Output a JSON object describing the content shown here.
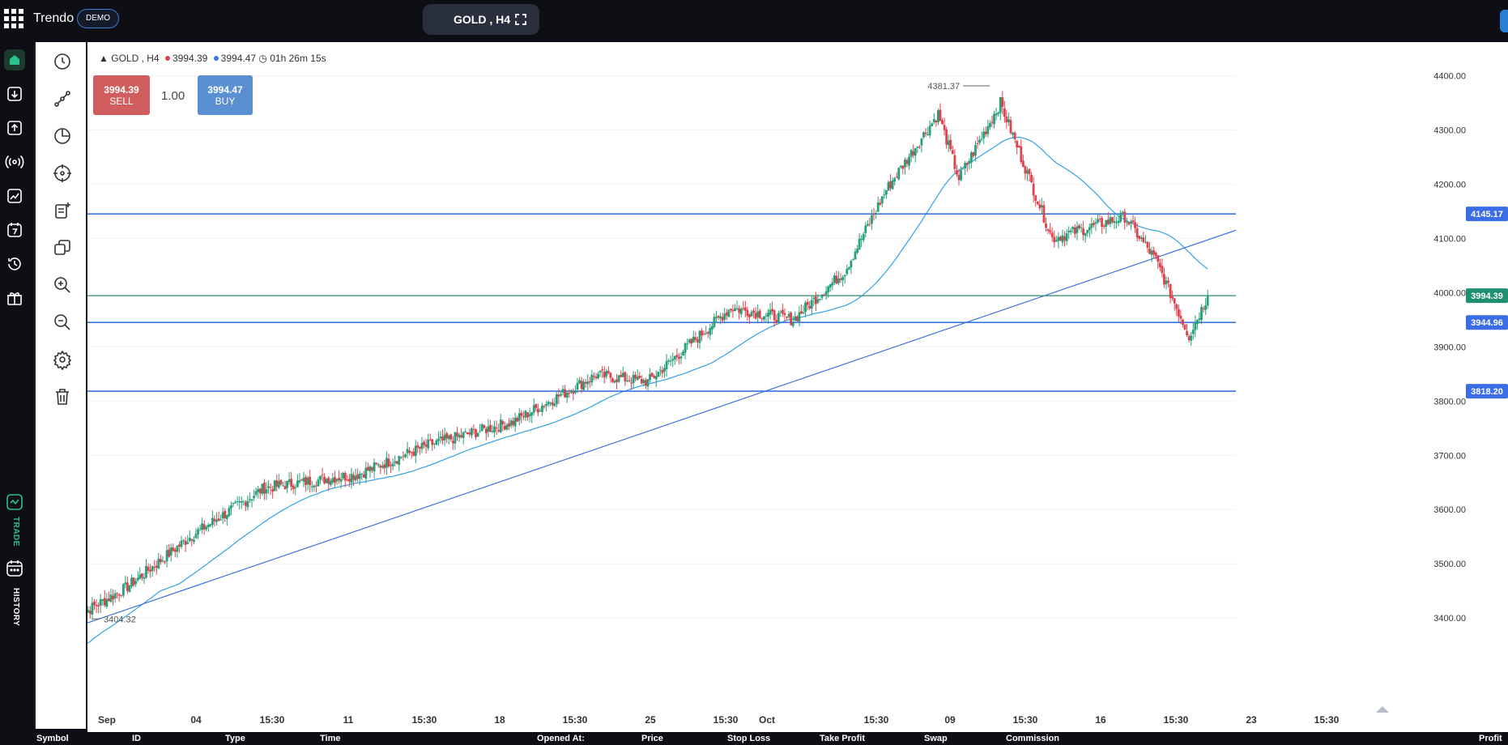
{
  "topbar": {
    "brand": "Trendo",
    "account_badge": "DEMO",
    "symbol_timeframe": "GOLD , H4",
    "icons": [
      "apps-grid-icon",
      "fullscreen-icon"
    ]
  },
  "leftnav": {
    "items": [
      "home-icon",
      "deposit-icon",
      "withdraw-icon",
      "signals-icon",
      "chart-icon",
      "calendar-icon",
      "history-icon",
      "gift-icon"
    ],
    "trade_label": "TRADE",
    "history_label": "HISTORY"
  },
  "toolbar": {
    "tools": [
      "clock-icon",
      "trendline-icon",
      "pie-icon",
      "crosshair-icon",
      "add-note-icon",
      "copy-icon",
      "zoom-in-icon",
      "zoom-out-icon",
      "settings-icon",
      "trash-icon"
    ]
  },
  "chart_header": {
    "symbol": "GOLD , H4",
    "bid": "3994.39",
    "ask": "3994.47",
    "countdown": "01h 26m 15s"
  },
  "trade_panel": {
    "sell_price": "3994.39",
    "sell_label": "SELL",
    "lot": "1.00",
    "buy_price": "3994.47",
    "buy_label": "BUY"
  },
  "colors": {
    "bull": "#26a07a",
    "bear": "#e0424d",
    "line": "#3b73e0",
    "ma": "#33a0e8",
    "price_line": "#2e8b6a"
  },
  "chart_data": {
    "type": "candlestick",
    "symbol": "GOLD",
    "timeframe": "H4",
    "ylim": [
      3345,
      4450
    ],
    "yticks": [
      "4400.00",
      "4300.00",
      "4200.00",
      "4100.00",
      "4000.00",
      "3900.00",
      "3800.00",
      "3700.00",
      "3600.00",
      "3500.00",
      "3400.00"
    ],
    "xticks": [
      "Sep",
      "04",
      "15:30",
      "11",
      "15:30",
      "18",
      "15:30",
      "25",
      "15:30",
      "Oct",
      "15:30",
      "09",
      "15:30",
      "16",
      "15:30",
      "23",
      "15:30"
    ],
    "anchors": [
      [
        0,
        3404
      ],
      [
        23,
        3455
      ],
      [
        55,
        3552
      ],
      [
        90,
        3640
      ],
      [
        135,
        3665
      ],
      [
        170,
        3720
      ],
      [
        210,
        3762
      ],
      [
        250,
        3848
      ],
      [
        275,
        3836
      ],
      [
        315,
        3972
      ],
      [
        345,
        3950
      ],
      [
        370,
        4040
      ],
      [
        390,
        4190
      ],
      [
        415,
        4330
      ],
      [
        425,
        4210
      ],
      [
        445,
        4350
      ],
      [
        470,
        4100
      ],
      [
        505,
        4140
      ],
      [
        520,
        4060
      ],
      [
        536,
        3920
      ],
      [
        545,
        3994
      ]
    ],
    "horizontal_lines": [
      {
        "value": 4145.17,
        "label": "4145.17",
        "color": "#3b73e0"
      },
      {
        "value": 3994.39,
        "label": "3994.39",
        "color": "#2e8b6a"
      },
      {
        "value": 3944.96,
        "label": "3944.96",
        "color": "#3b73e0"
      },
      {
        "value": 3818.2,
        "label": "3818.20",
        "color": "#3b73e0"
      }
    ],
    "trendline": [
      [
        3391,
        3404
      ],
      [
        4115,
        4115
      ]
    ],
    "annotations": [
      {
        "text": "4381.37",
        "value": 4381.37
      },
      {
        "text": "3404.32",
        "value": 3404.32
      }
    ]
  },
  "positions_table": {
    "columns": [
      "Symbol",
      "ID",
      "Type",
      "Time",
      "Opened At:",
      "Price",
      "Stop Loss",
      "Take Profit",
      "Swap",
      "Commission",
      "Profit"
    ]
  }
}
